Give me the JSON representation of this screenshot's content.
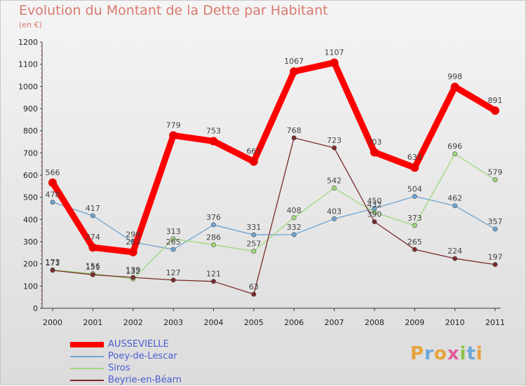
{
  "title": "Evolution du Montant de la Dette par Habitant",
  "subtitle": "(en €)",
  "logo": {
    "text": "Proxiti"
  },
  "chart_data": {
    "type": "line",
    "categories": [
      "2000",
      "2001",
      "2002",
      "2003",
      "2004",
      "2005",
      "2006",
      "2007",
      "2008",
      "2009",
      "2010",
      "2011"
    ],
    "ylim": [
      0,
      1200
    ],
    "yticks": [
      0,
      100,
      200,
      300,
      400,
      500,
      600,
      700,
      800,
      900,
      1000,
      1100,
      1200
    ],
    "grid": false,
    "legend_position": "bottom-left",
    "series": [
      {
        "name": "AUSSEVIELLE",
        "color": "#ff0000",
        "values": [
          566,
          274,
          253,
          779,
          753,
          661,
          1067,
          1107,
          703,
          634,
          998,
          891
        ]
      },
      {
        "name": "Poey-de-Lescar",
        "color": "#6fa3d0",
        "values": [
          478,
          417,
          298,
          265,
          376,
          331,
          332,
          403,
          450,
          504,
          462,
          357
        ]
      },
      {
        "name": "Siros",
        "color": "#9ed97a",
        "values": [
          173,
          156,
          132,
          313,
          286,
          257,
          408,
          542,
          432,
          373,
          696,
          579
        ]
      },
      {
        "name": "Beyrie-en-Béarn",
        "color": "#7a2a2a",
        "values": [
          171,
          151,
          139,
          127,
          121,
          63,
          768,
          723,
          390,
          265,
          224,
          197
        ]
      }
    ]
  }
}
